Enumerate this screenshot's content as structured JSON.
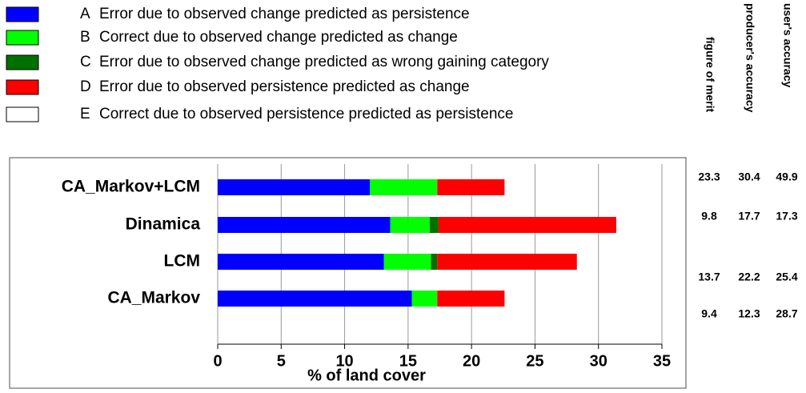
{
  "chart_data": {
    "type": "stacked-hbar",
    "x_label": "% of land cover",
    "categories": [
      "CA_Markov+LCM",
      "Dinamica",
      "LCM",
      "CA_Markov"
    ],
    "series": [
      {
        "name": "Error due to observed change predicted as persistence",
        "letter": "A",
        "color": "#0000ff",
        "values": [
          12.0,
          13.6,
          13.1,
          15.3
        ]
      },
      {
        "name": "Correct due to observed change predicted as change",
        "letter": "B",
        "color": "#00ff00",
        "values": [
          5.3,
          3.1,
          3.7,
          2.0
        ]
      },
      {
        "name": "Error due to observed change predicted as wrong gaining category",
        "letter": "C",
        "color": "#007000",
        "values": [
          0,
          0.7,
          0.5,
          0
        ]
      },
      {
        "name": "Error due to observed persistence predicted as change",
        "letter": "D",
        "color": "#ff0000",
        "values": [
          5.3,
          14.0,
          11.0,
          5.3
        ]
      },
      {
        "name": "Correct due to observed persistence predicted as persistence",
        "letter": "E",
        "color": "#ffffff",
        "values": [
          null,
          null,
          null,
          null
        ]
      }
    ],
    "xlim": [
      0,
      35
    ],
    "xticks": [
      0,
      5,
      10,
      15,
      20,
      25,
      30,
      35
    ],
    "grid": true,
    "table": {
      "headers": [
        "figure of merit",
        "producer's accuracy",
        "user's accuracy"
      ],
      "rows": [
        [
          23.3,
          30.4,
          49.9
        ],
        [
          9.8,
          17.7,
          17.3
        ],
        [
          13.7,
          22.2,
          25.4
        ],
        [
          9.4,
          12.3,
          28.7
        ]
      ]
    }
  }
}
